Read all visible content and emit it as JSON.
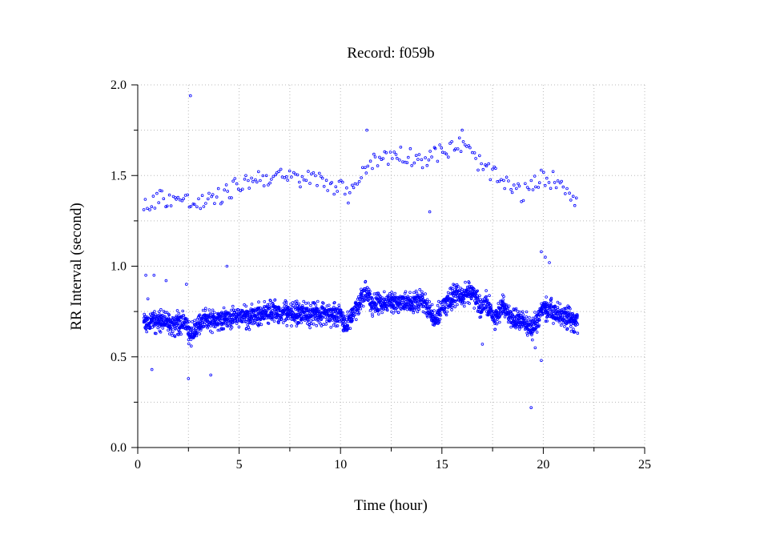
{
  "chart_data": {
    "type": "scatter",
    "title": "Record:  f059b",
    "xlabel": "Time (hour)",
    "ylabel": "RR Interval (second)",
    "xlim": [
      0,
      25
    ],
    "ylim": [
      0,
      2
    ],
    "xticks": [
      0,
      5,
      10,
      15,
      20,
      25
    ],
    "xtick_labels": [
      "0",
      "5",
      "10",
      "15",
      "20",
      "25"
    ],
    "yticks": [
      0,
      0.5,
      1,
      1.5,
      2
    ],
    "ytick_labels": [
      "0.0",
      "0.5",
      "1.0",
      "1.5",
      "2.0"
    ],
    "grid": true,
    "legend": "none",
    "marker_color": "#0000ff",
    "x_range_of_data": [
      0.3,
      21.7
    ],
    "main_band_x": [
      0.3,
      0.8,
      1.3,
      1.8,
      2.3,
      2.6,
      2.9,
      3.3,
      3.7,
      4.0,
      4.5,
      5.0,
      5.5,
      6.0,
      6.5,
      7.0,
      7.5,
      8.0,
      8.5,
      9.0,
      9.5,
      10.0,
      10.3,
      10.6,
      11.0,
      11.3,
      11.6,
      12.0,
      12.5,
      13.0,
      13.5,
      14.0,
      14.4,
      14.6,
      15.0,
      15.5,
      16.0,
      16.5,
      16.9,
      17.2,
      17.6,
      18.0,
      18.5,
      19.0,
      19.5,
      20.0,
      20.5,
      21.0,
      21.7
    ],
    "main_band_y": [
      0.68,
      0.7,
      0.69,
      0.68,
      0.7,
      0.62,
      0.66,
      0.7,
      0.7,
      0.71,
      0.72,
      0.73,
      0.72,
      0.74,
      0.75,
      0.74,
      0.74,
      0.74,
      0.73,
      0.74,
      0.73,
      0.73,
      0.67,
      0.74,
      0.82,
      0.86,
      0.78,
      0.79,
      0.8,
      0.8,
      0.79,
      0.81,
      0.77,
      0.69,
      0.77,
      0.83,
      0.84,
      0.86,
      0.77,
      0.8,
      0.71,
      0.78,
      0.7,
      0.7,
      0.66,
      0.77,
      0.75,
      0.72,
      0.7
    ],
    "upper_band_x": [
      0.3,
      1.0,
      2.0,
      3.0,
      4.0,
      5.0,
      6.0,
      7.0,
      8.0,
      9.0,
      10.0,
      10.5,
      11.0,
      12.0,
      13.0,
      14.0,
      15.0,
      16.0,
      17.0,
      18.0,
      19.0,
      20.0,
      21.0,
      21.7
    ],
    "upper_band_y": [
      1.32,
      1.38,
      1.37,
      1.34,
      1.38,
      1.45,
      1.49,
      1.49,
      1.48,
      1.48,
      1.43,
      1.38,
      1.53,
      1.6,
      1.62,
      1.59,
      1.63,
      1.67,
      1.55,
      1.46,
      1.4,
      1.49,
      1.46,
      1.35
    ],
    "outliers_x": [
      2.6,
      19.4,
      19.9,
      20.1,
      4.4,
      11.3,
      16.0,
      0.4,
      0.7,
      2.5,
      3.6,
      19.6,
      19.9,
      0.8,
      1.4,
      2.4,
      17.0,
      20.3,
      0.5,
      14.4
    ],
    "outliers_y": [
      1.94,
      0.22,
      1.08,
      1.05,
      1.0,
      1.75,
      1.75,
      0.95,
      0.43,
      0.38,
      0.4,
      0.55,
      0.48,
      0.95,
      0.92,
      0.9,
      0.57,
      1.02,
      0.82,
      1.3
    ]
  }
}
